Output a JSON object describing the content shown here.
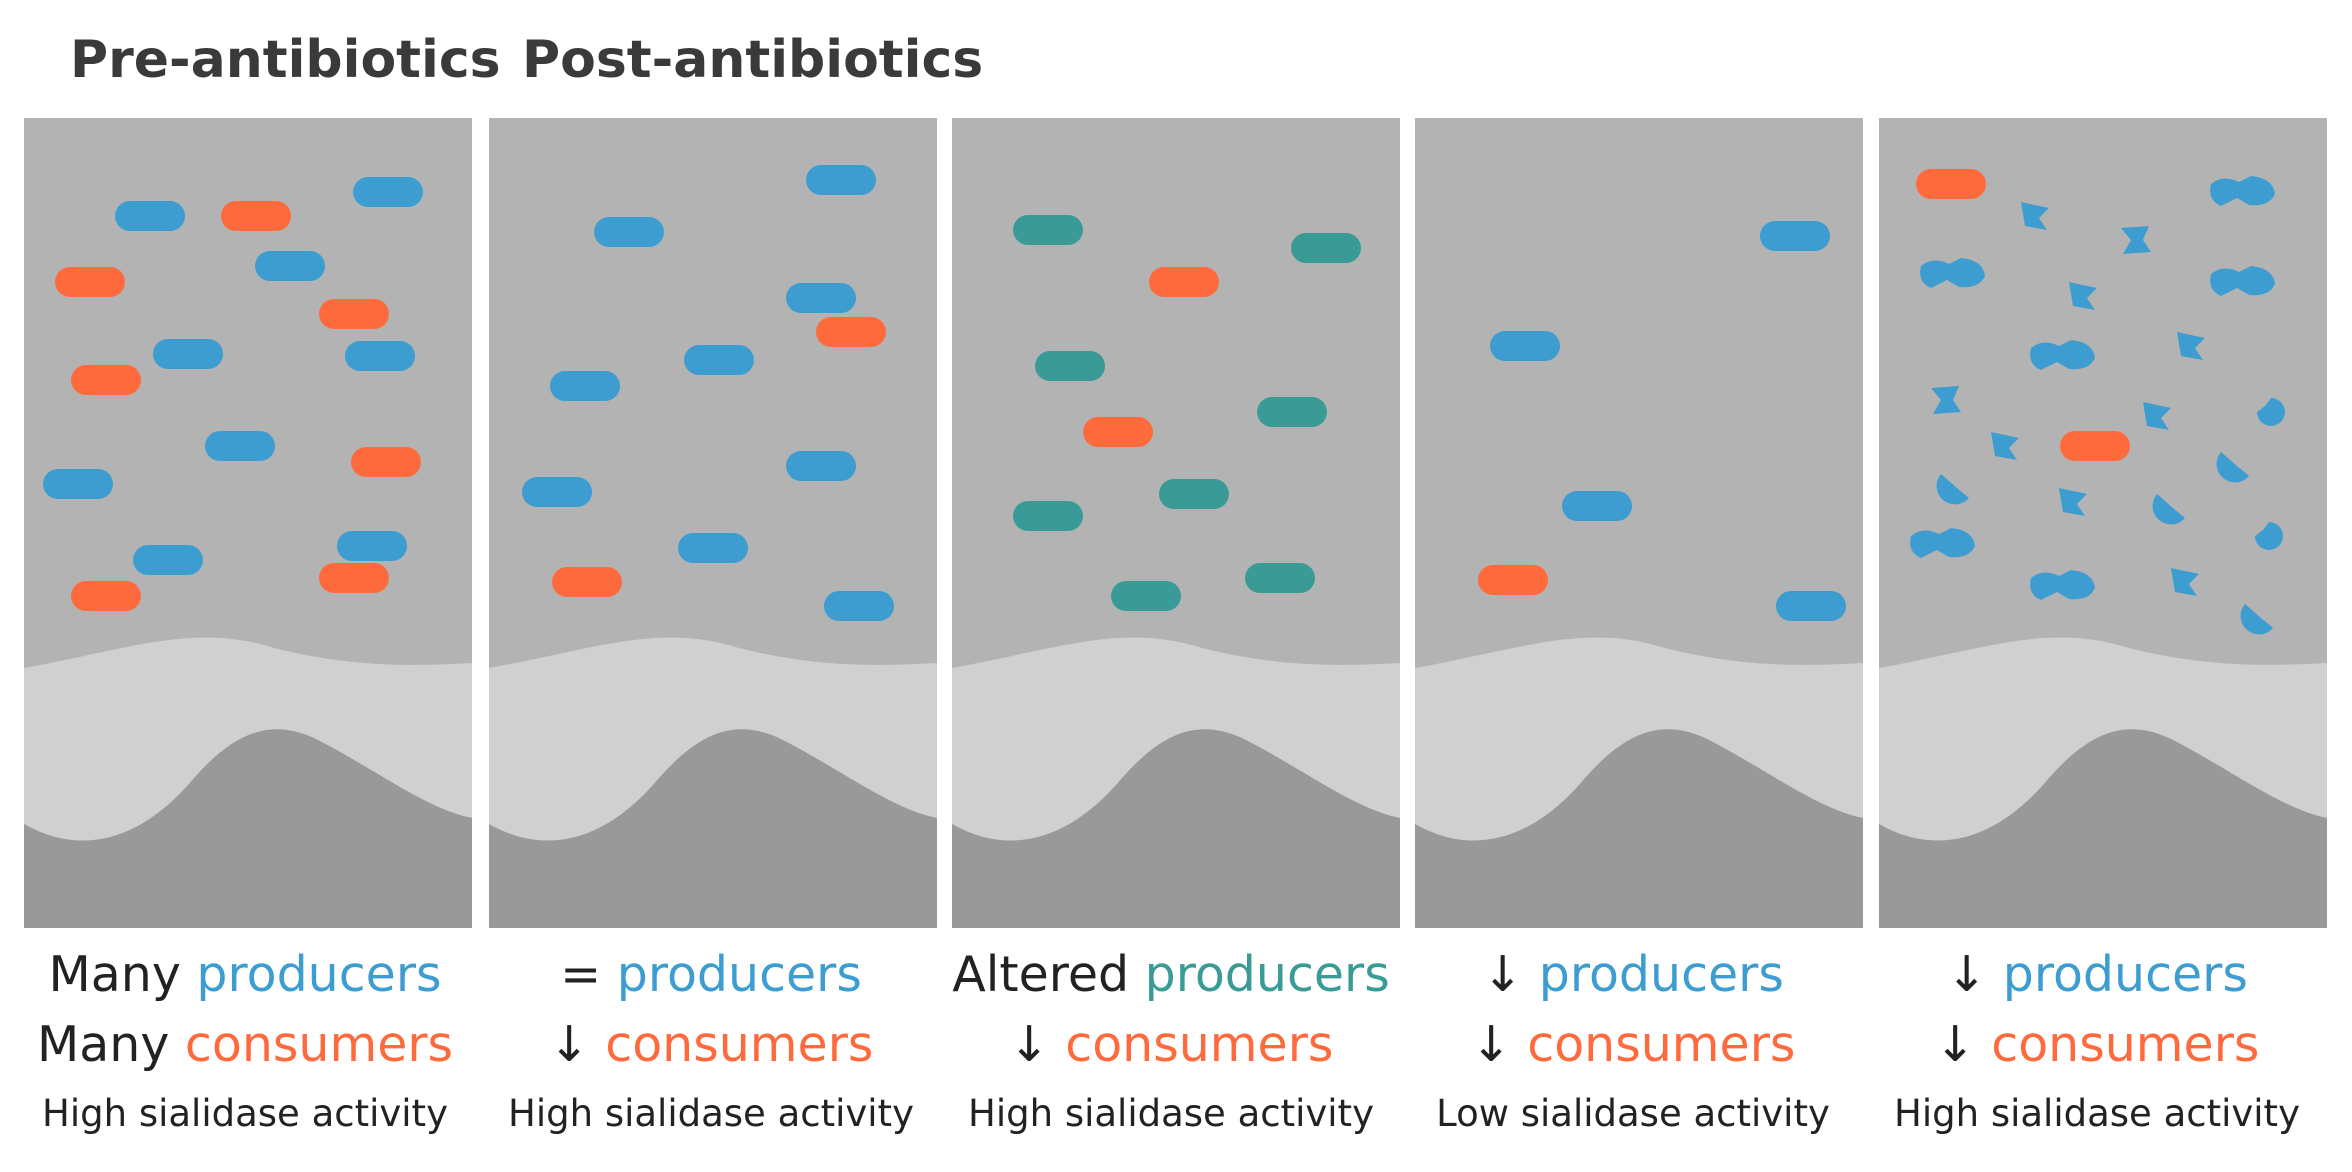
{
  "headings": {
    "pre": "Pre-antibiotics",
    "post": "Post-antibiotics"
  },
  "colors": {
    "producer": "#3d9dd1",
    "consumer": "#ff6a3d",
    "altered_producer": "#3a9b96",
    "lumen": "#b3b3b3",
    "mucus": "#d0d0d0",
    "epithelium": "#999999"
  },
  "panels": [
    {
      "caption": {
        "prefix1": "Many ",
        "word1": "producers",
        "prefix2": "Many ",
        "word2": "consumers",
        "activity": "High sialidase activity"
      }
    },
    {
      "caption": {
        "prefix1": "= ",
        "word1": "producers",
        "prefix2": "↓ ",
        "word2": "consumers",
        "activity": "High sialidase activity"
      }
    },
    {
      "caption": {
        "prefix1": "Altered ",
        "word1": "producers",
        "prefix2": "↓ ",
        "word2": "consumers",
        "activity": "High sialidase activity"
      }
    },
    {
      "caption": {
        "prefix1": "↓ ",
        "word1": "producers",
        "prefix2": "↓ ",
        "word2": "consumers",
        "activity": "Low sialidase activity"
      }
    },
    {
      "caption": {
        "prefix1": "↓ ",
        "word1": "producers",
        "prefix2": "↓ ",
        "word2": "consumers",
        "activity": "High sialidase activity"
      }
    }
  ]
}
